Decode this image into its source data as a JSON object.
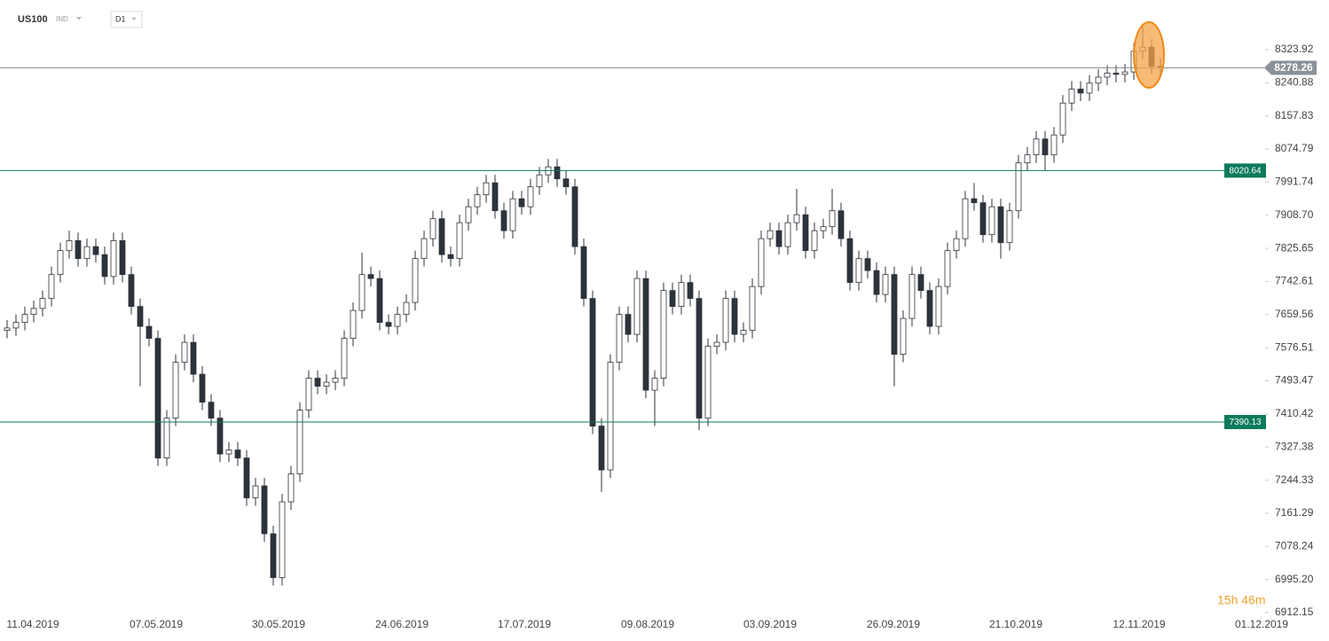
{
  "chart_data": {
    "type": "candlestick",
    "title": "US100",
    "subtitle": "IND",
    "interval": "D1",
    "timer": "15h 46m",
    "ylim": [
      6892.2,
      8448.4
    ],
    "yticks": [
      8323.92,
      8240.88,
      8157.83,
      8074.79,
      7991.74,
      {
        "value": 7908.7,
        "label": "7908.70"
      },
      7825.65,
      7742.61,
      7659.56,
      7576.51,
      7493.47,
      7410.42,
      7327.38,
      7244.33,
      7161.29,
      7078.24,
      {
        "value": 6995.2,
        "label": "6995.20"
      },
      6912.15
    ],
    "xlim": [
      -0.8,
      141.7
    ],
    "xticks": [
      {
        "value": 2.9,
        "label": "11.04.2019"
      },
      {
        "value": 16.8,
        "label": "07.05.2019"
      },
      {
        "value": 30.6,
        "label": "30.05.2019"
      },
      {
        "value": 44.5,
        "label": "24.06.2019"
      },
      {
        "value": 58.3,
        "label": "17.07.2019"
      },
      {
        "value": 72.2,
        "label": "09.08.2019"
      },
      {
        "value": 86,
        "label": "03.09.2019"
      },
      {
        "value": 99.9,
        "label": "26.09.2019"
      },
      {
        "value": 113.7,
        "label": "21.10.2019"
      },
      {
        "value": 127.6,
        "label": "12.11.2019"
      },
      {
        "value": 141.4,
        "label": "01.12.2019"
      }
    ],
    "current_price": 8278.26,
    "current_color": "#8a9198",
    "levels": [
      {
        "value": 8020.64,
        "color": "#0b7a5c"
      },
      {
        "value": 7390.13,
        "color": "#0b7a5c"
      }
    ],
    "up_color": "#ffffff",
    "down_color": "#2d333b",
    "open": [
      7620,
      7626,
      7640,
      7660,
      7675,
      7700,
      7760,
      7820,
      7845,
      7800,
      7830,
      7810,
      7755,
      7845,
      7760,
      7680,
      7630,
      7600,
      7300,
      7400,
      7540,
      7590,
      7510,
      7440,
      7400,
      7310,
      7320,
      7300,
      7200,
      7230,
      7110,
      7000,
      7190,
      7260,
      7420,
      7500,
      7480,
      7490,
      7500,
      7600,
      7670,
      7760,
      7750,
      7640,
      7630,
      7660,
      7690,
      7800,
      7850,
      7900,
      7810,
      7800,
      7890,
      7930,
      7960,
      7990,
      7920,
      7870,
      7950,
      7930,
      7980,
      8010,
      8030,
      8000,
      7980,
      7830,
      7700,
      7380,
      7270,
      7540,
      7660,
      7610,
      7750,
      7470,
      7500,
      7720,
      7680,
      7740,
      7700,
      7400,
      7580,
      7590,
      7700,
      7610,
      7620,
      7730,
      7850,
      7870,
      7830,
      7890,
      7910,
      7820,
      7870,
      7880,
      7920,
      7850,
      7740,
      7800,
      7770,
      7710,
      7760,
      7560,
      7650,
      7760,
      7720,
      7630,
      7730,
      7820,
      7850,
      7950,
      7940,
      7860,
      7930,
      7840,
      7920,
      8040,
      8060,
      8100,
      8060,
      8110,
      8190,
      8225,
      8215,
      8240,
      8255,
      8265,
      8262,
      8268,
      8320,
      8330,
      8282
    ],
    "high": [
      7646,
      7660,
      7680,
      7695,
      7720,
      7780,
      7840,
      7870,
      7865,
      7850,
      7850,
      7830,
      7865,
      7865,
      7780,
      7700,
      7650,
      7620,
      7420,
      7560,
      7610,
      7610,
      7530,
      7460,
      7420,
      7340,
      7340,
      7320,
      7250,
      7250,
      7130,
      7210,
      7280,
      7440,
      7520,
      7520,
      7510,
      7520,
      7620,
      7690,
      7815,
      7780,
      7770,
      7660,
      7680,
      7710,
      7820,
      7870,
      7920,
      7920,
      7830,
      7910,
      7950,
      7980,
      8010,
      8010,
      7940,
      7970,
      7970,
      8000,
      8030,
      8050,
      8050,
      8020,
      8000,
      7850,
      7720,
      7400,
      7560,
      7680,
      7680,
      7770,
      7770,
      7520,
      7740,
      7740,
      7760,
      7760,
      7720,
      7600,
      7610,
      7720,
      7720,
      7640,
      7750,
      7870,
      7890,
      7890,
      7910,
      7975,
      7930,
      7890,
      7900,
      7975,
      7940,
      7870,
      7820,
      7820,
      7790,
      7780,
      7780,
      7670,
      7780,
      7780,
      7740,
      7750,
      7840,
      7870,
      7970,
      7990,
      7960,
      7950,
      7950,
      7940,
      8060,
      8080,
      8120,
      8120,
      8130,
      8210,
      8245,
      8245,
      8260,
      8275,
      8285,
      8285,
      8288,
      8340,
      8382,
      8350,
      8302
    ],
    "low": [
      7600,
      7606,
      7620,
      7640,
      7655,
      7680,
      7740,
      7800,
      7780,
      7780,
      7790,
      7735,
      7735,
      7740,
      7660,
      7480,
      7580,
      7280,
      7280,
      7380,
      7520,
      7490,
      7420,
      7380,
      7290,
      7290,
      7280,
      7180,
      7180,
      7090,
      6980,
      6980,
      7170,
      7240,
      7400,
      7460,
      7460,
      7470,
      7480,
      7580,
      7650,
      7730,
      7620,
      7610,
      7610,
      7640,
      7670,
      7780,
      7830,
      7790,
      7780,
      7780,
      7870,
      7910,
      7940,
      7900,
      7850,
      7850,
      7910,
      7910,
      7960,
      7990,
      7980,
      7960,
      7810,
      7680,
      7360,
      7215,
      7250,
      7520,
      7590,
      7590,
      7450,
      7380,
      7480,
      7660,
      7660,
      7680,
      7370,
      7380,
      7560,
      7570,
      7590,
      7590,
      7600,
      7710,
      7830,
      7810,
      7810,
      7870,
      7800,
      7800,
      7850,
      7860,
      7830,
      7720,
      7720,
      7750,
      7690,
      7690,
      7480,
      7540,
      7630,
      7700,
      7610,
      7610,
      7710,
      7800,
      7830,
      7920,
      7840,
      7840,
      7800,
      7820,
      7900,
      8020,
      8040,
      8020,
      8040,
      8090,
      8170,
      8195,
      8195,
      8220,
      8235,
      8242,
      8242,
      8248,
      8300,
      8262,
      8258
    ],
    "close": [
      7626,
      7640,
      7660,
      7675,
      7700,
      7760,
      7820,
      7845,
      7800,
      7830,
      7810,
      7755,
      7845,
      7760,
      7680,
      7630,
      7600,
      7300,
      7400,
      7540,
      7590,
      7510,
      7440,
      7400,
      7310,
      7320,
      7300,
      7200,
      7230,
      7110,
      7000,
      7190,
      7260,
      7420,
      7500,
      7480,
      7490,
      7500,
      7600,
      7670,
      7760,
      7750,
      7640,
      7630,
      7660,
      7690,
      7800,
      7850,
      7900,
      7810,
      7800,
      7890,
      7930,
      7960,
      7990,
      7920,
      7870,
      7950,
      7930,
      7980,
      8010,
      8030,
      8000,
      7980,
      7830,
      7700,
      7380,
      7270,
      7540,
      7660,
      7610,
      7750,
      7470,
      7500,
      7720,
      7680,
      7740,
      7700,
      7400,
      7580,
      7590,
      7700,
      7610,
      7620,
      7730,
      7850,
      7870,
      7830,
      7890,
      7910,
      7820,
      7870,
      7880,
      7920,
      7850,
      7740,
      7800,
      7770,
      7710,
      7760,
      7560,
      7650,
      7760,
      7720,
      7630,
      7730,
      7820,
      7850,
      7950,
      7940,
      7860,
      7930,
      7840,
      7920,
      8040,
      8060,
      8100,
      8060,
      8110,
      8190,
      8225,
      8215,
      8240,
      8255,
      8265,
      8262,
      8268,
      8320,
      8330,
      8282,
      8278
    ]
  }
}
